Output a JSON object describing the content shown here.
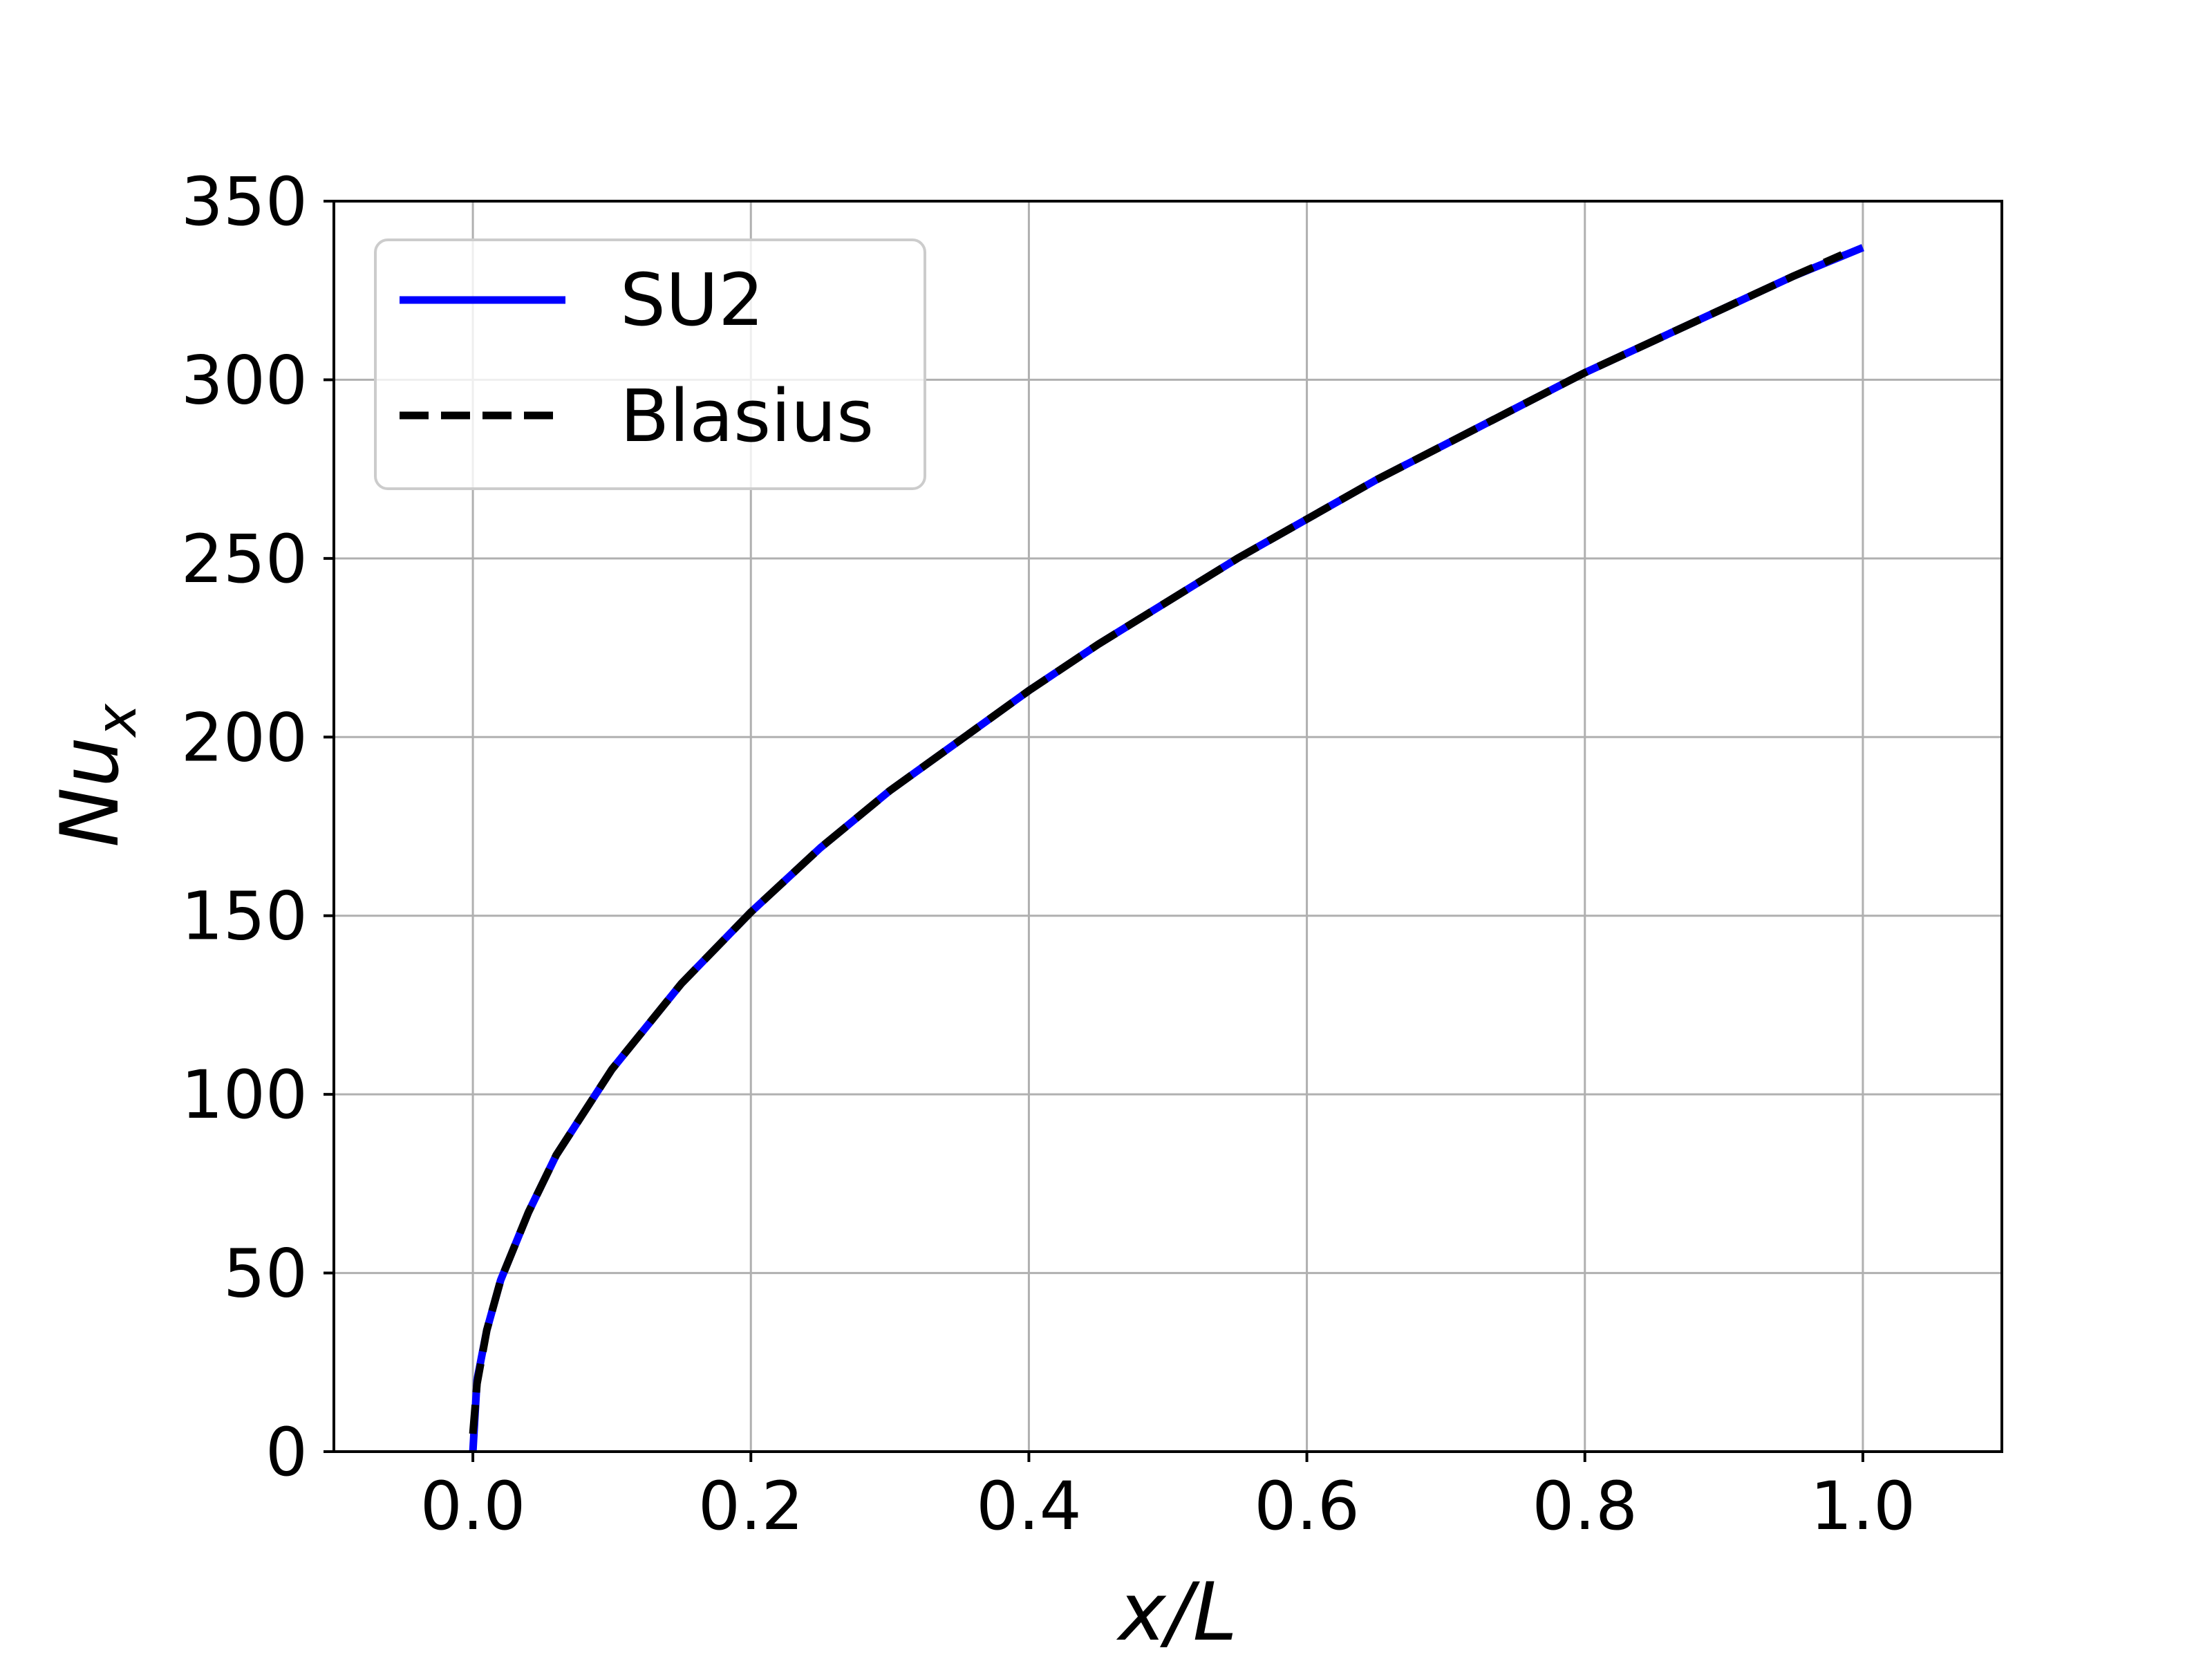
{
  "chart_data": {
    "type": "line",
    "title": "",
    "xlabel": "x/L",
    "ylabel": "Nu",
    "ylabel_subscript": "x",
    "xlim": [
      -0.1,
      1.1
    ],
    "ylim": [
      0,
      350
    ],
    "xticks": [
      0.0,
      0.2,
      0.4,
      0.6,
      0.8,
      1.0
    ],
    "xtick_labels": [
      "0.0",
      "0.2",
      "0.4",
      "0.6",
      "0.8",
      "1.0"
    ],
    "yticks": [
      0,
      50,
      100,
      150,
      200,
      250,
      300,
      350
    ],
    "ytick_labels": [
      "0",
      "50",
      "100",
      "150",
      "200",
      "250",
      "300",
      "350"
    ],
    "grid": true,
    "legend_position": "top-left",
    "series": [
      {
        "name": "SU2",
        "color": "#0000ff",
        "style": "solid",
        "x": [
          0.0,
          0.003,
          0.01,
          0.02,
          0.04,
          0.06,
          0.08,
          0.1,
          0.15,
          0.2,
          0.25,
          0.3,
          0.35,
          0.4,
          0.45,
          0.5,
          0.55,
          0.6,
          0.65,
          0.7,
          0.75,
          0.8,
          0.85,
          0.9,
          0.95,
          1.0
        ],
        "y": [
          0,
          20,
          34,
          48,
          67,
          83,
          95,
          107,
          131,
          151,
          169,
          185,
          199,
          213,
          226,
          238,
          250,
          261,
          272,
          282,
          292,
          302,
          311,
          320,
          329,
          337
        ]
      },
      {
        "name": "Blasius",
        "color": "#000000",
        "style": "dashed",
        "x": [
          0.0,
          0.003,
          0.01,
          0.02,
          0.04,
          0.06,
          0.08,
          0.1,
          0.15,
          0.2,
          0.25,
          0.3,
          0.35,
          0.4,
          0.45,
          0.5,
          0.55,
          0.6,
          0.65,
          0.7,
          0.75,
          0.8,
          0.85,
          0.9,
          0.95,
          0.985
        ],
        "y": [
          5,
          19,
          34,
          48,
          67,
          83,
          95,
          107,
          131,
          151,
          169,
          185,
          199,
          213,
          226,
          238,
          250,
          261,
          272,
          282,
          292,
          302,
          311,
          320,
          329,
          335
        ]
      }
    ]
  }
}
